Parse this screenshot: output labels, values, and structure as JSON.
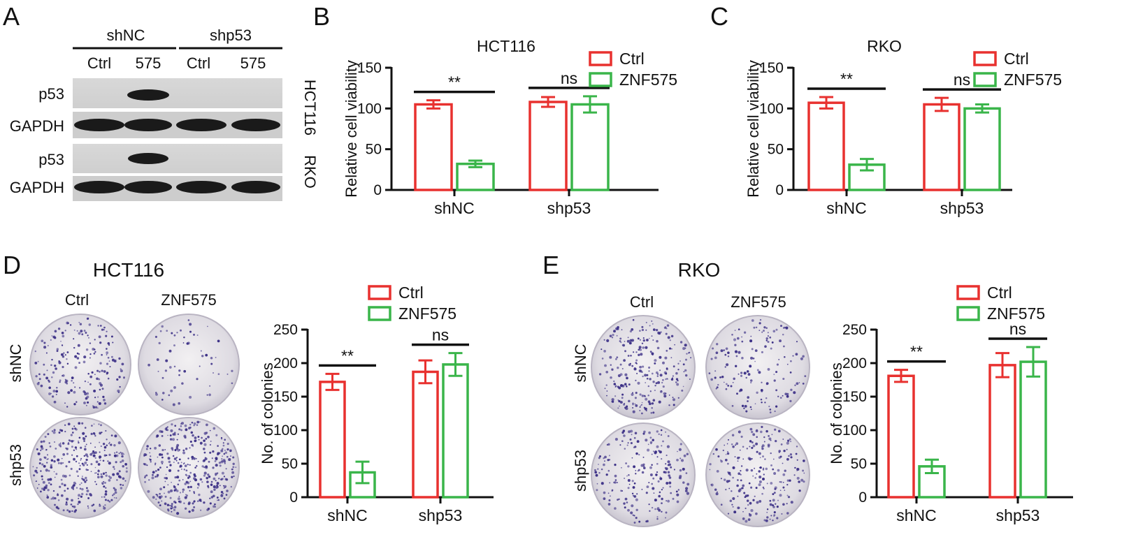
{
  "figure": {
    "panels": [
      "A",
      "B",
      "C",
      "D",
      "E"
    ]
  },
  "western_blot": {
    "groups": [
      "shNC",
      "shp53"
    ],
    "lanes": [
      "Ctrl",
      "575",
      "Ctrl",
      "575"
    ],
    "cell_lines": [
      "HCT116",
      "RKO"
    ],
    "rows": [
      "p53",
      "GAPDH",
      "p53",
      "GAPDH"
    ]
  },
  "colony_images": {
    "D": {
      "title": "HCT116",
      "columns": [
        "Ctrl",
        "ZNF575"
      ],
      "rows": [
        "shNC",
        "shp53"
      ]
    },
    "E": {
      "title": "RKO",
      "columns": [
        "Ctrl",
        "ZNF575"
      ],
      "rows": [
        "shNC",
        "shp53"
      ]
    }
  },
  "colors": {
    "ctrl": "#e8312f",
    "znf575": "#3ab54a",
    "axis": "#111111",
    "band": "#1a1a1a",
    "stain": "#3b2f86"
  },
  "chart_data": [
    {
      "panel": "B",
      "type": "bar",
      "title": "HCT116",
      "categories": [
        "shNC",
        "shp53"
      ],
      "series": [
        {
          "name": "Ctrl",
          "values": [
            105,
            108
          ],
          "errors": [
            5,
            6
          ]
        },
        {
          "name": "ZNF575",
          "values": [
            32,
            105
          ],
          "errors": [
            4,
            10
          ]
        }
      ],
      "ylabel": "Relative cell viability",
      "xlabel": "",
      "ylim": [
        0,
        150
      ],
      "yticks": [
        0,
        50,
        100,
        150
      ],
      "significance": [
        "**",
        "ns"
      ],
      "legend": "top-right",
      "grid": false
    },
    {
      "panel": "C",
      "type": "bar",
      "title": "RKO",
      "categories": [
        "shNC",
        "shp53"
      ],
      "series": [
        {
          "name": "Ctrl",
          "values": [
            107,
            105
          ],
          "errors": [
            7,
            8
          ]
        },
        {
          "name": "ZNF575",
          "values": [
            31,
            100
          ],
          "errors": [
            7,
            5
          ]
        }
      ],
      "ylabel": "Relative cell viability",
      "xlabel": "",
      "ylim": [
        0,
        150
      ],
      "yticks": [
        0,
        50,
        100,
        150
      ],
      "significance": [
        "**",
        "ns"
      ],
      "legend": "top-right",
      "grid": false
    },
    {
      "panel": "D",
      "type": "bar",
      "title": "",
      "categories": [
        "shNC",
        "shp53"
      ],
      "series": [
        {
          "name": "Ctrl",
          "values": [
            172,
            187
          ],
          "errors": [
            12,
            17
          ]
        },
        {
          "name": "ZNF575",
          "values": [
            37,
            198
          ],
          "errors": [
            16,
            17
          ]
        }
      ],
      "ylabel": "No. of colonies",
      "xlabel": "",
      "ylim": [
        0,
        250
      ],
      "yticks": [
        0,
        50,
        100,
        150,
        200,
        250
      ],
      "significance": [
        "**",
        "ns"
      ],
      "legend": "top-right",
      "grid": false
    },
    {
      "panel": "E",
      "type": "bar",
      "title": "",
      "categories": [
        "shNC",
        "shp53"
      ],
      "series": [
        {
          "name": "Ctrl",
          "values": [
            181,
            197
          ],
          "errors": [
            9,
            18
          ]
        },
        {
          "name": "ZNF575",
          "values": [
            46,
            202
          ],
          "errors": [
            10,
            22
          ]
        }
      ],
      "ylabel": "No. of colonies",
      "xlabel": "",
      "ylim": [
        0,
        250
      ],
      "yticks": [
        0,
        50,
        100,
        150,
        200,
        250
      ],
      "significance": [
        "**",
        "ns"
      ],
      "legend": "top-right",
      "grid": false
    }
  ]
}
